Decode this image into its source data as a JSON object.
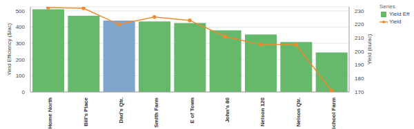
{
  "chart_data": {
    "type": "bar",
    "categories": [
      "Home North",
      "Bill's Place",
      "Dad's Qtr.",
      "Smith Farm",
      "E of Town",
      "John's 80",
      "Nelson 120",
      "Nelson Qtr.",
      "School Farm"
    ],
    "series": [
      {
        "name": "Yield Eff",
        "type": "bar",
        "color": "#66b96a",
        "colors": [
          "#66b96a",
          "#66b96a",
          "#7ea6cc",
          "#66b96a",
          "#66b96a",
          "#66b96a",
          "#66b96a",
          "#66b96a",
          "#66b96a"
        ],
        "values": [
          510,
          470,
          440,
          435,
          425,
          380,
          355,
          308,
          243
        ]
      },
      {
        "name": "Yield",
        "type": "line",
        "color": "#f08a2c",
        "marker": "circle",
        "axis": "y2",
        "values": [
          232.5,
          232,
          220,
          225.5,
          223,
          211,
          205,
          205,
          171
        ]
      }
    ],
    "y_label": "Yield Efficiency ($/ac)",
    "y2_label": "Yield (bu/ac)",
    "ylim": [
      0,
      525
    ],
    "yticks": [
      0,
      100,
      200,
      300,
      400,
      500
    ],
    "y2lim": [
      170,
      233
    ],
    "y2ticks": [
      170,
      180,
      190,
      200,
      210,
      220,
      230
    ],
    "grid": true,
    "legend": "right",
    "legend_title": "Series"
  }
}
